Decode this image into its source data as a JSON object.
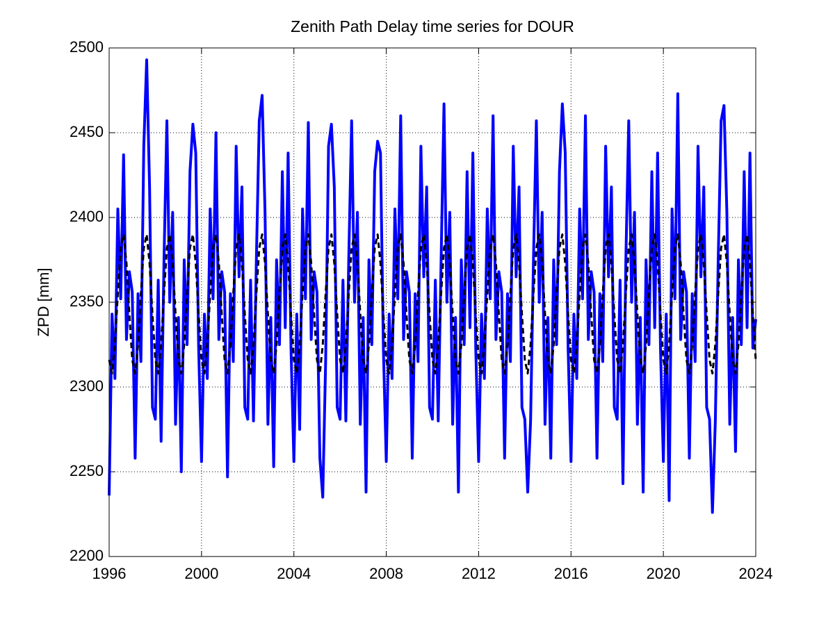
{
  "chart_data": {
    "type": "line",
    "title": "Zenith Path Delay time series for DOUR",
    "y_label": "ZPD [mm]",
    "xlim": [
      1996,
      2024
    ],
    "xticks": [
      1996,
      2000,
      2004,
      2008,
      2012,
      2016,
      2020,
      2024
    ],
    "ylim": [
      2200,
      2500
    ],
    "yticks": [
      2200,
      2250,
      2300,
      2350,
      2400,
      2450,
      2500
    ],
    "grid": true,
    "x": [
      1996,
      1996.125,
      1996.25,
      1996.375,
      1996.5,
      1996.625,
      1996.75,
      1996.875,
      1997,
      1997.125,
      1997.25,
      1997.375,
      1997.5,
      1997.625,
      1997.75,
      1997.875,
      1998,
      1998.125,
      1998.25,
      1998.375,
      1998.5,
      1998.625,
      1998.75,
      1998.875,
      1999,
      1999.125,
      1999.25,
      1999.375,
      1999.5,
      1999.625,
      1999.75,
      1999.875,
      2000,
      2000.125,
      2000.25,
      2000.375,
      2000.5,
      2000.625,
      2000.75,
      2000.875,
      2001,
      2001.125,
      2001.25,
      2001.375,
      2001.5,
      2001.625,
      2001.75,
      2001.875,
      2002,
      2002.125,
      2002.25,
      2002.375,
      2002.5,
      2002.625,
      2002.75,
      2002.875,
      2003,
      2003.125,
      2003.25,
      2003.375,
      2003.5,
      2003.625,
      2003.75,
      2003.875,
      2004,
      2004.125,
      2004.25,
      2004.375,
      2004.5,
      2004.625,
      2004.75,
      2004.875,
      2005,
      2005.125,
      2005.25,
      2005.375,
      2005.5,
      2005.625,
      2005.75,
      2005.875,
      2006,
      2006.125,
      2006.25,
      2006.375,
      2006.5,
      2006.625,
      2006.75,
      2006.875,
      2007,
      2007.125,
      2007.25,
      2007.375,
      2007.5,
      2007.625,
      2007.75,
      2007.875,
      2008,
      2008.125,
      2008.25,
      2008.375,
      2008.5,
      2008.625,
      2008.75,
      2008.875,
      2009,
      2009.125,
      2009.25,
      2009.375,
      2009.5,
      2009.625,
      2009.75,
      2009.875,
      2010,
      2010.125,
      2010.25,
      2010.375,
      2010.5,
      2010.625,
      2010.75,
      2010.875,
      2011,
      2011.125,
      2011.25,
      2011.375,
      2011.5,
      2011.625,
      2011.75,
      2011.875,
      2012,
      2012.125,
      2012.25,
      2012.375,
      2012.5,
      2012.625,
      2012.75,
      2012.875,
      2013,
      2013.125,
      2013.25,
      2013.375,
      2013.5,
      2013.625,
      2013.75,
      2013.875,
      2014,
      2014.125,
      2014.25,
      2014.375,
      2014.5,
      2014.625,
      2014.75,
      2014.875,
      2015,
      2015.125,
      2015.25,
      2015.375,
      2015.5,
      2015.625,
      2015.75,
      2015.875,
      2016,
      2016.125,
      2016.25,
      2016.375,
      2016.5,
      2016.625,
      2016.75,
      2016.875,
      2017,
      2017.125,
      2017.25,
      2017.375,
      2017.5,
      2017.625,
      2017.75,
      2017.875,
      2018,
      2018.125,
      2018.25,
      2018.375,
      2018.5,
      2018.625,
      2018.75,
      2018.875,
      2019,
      2019.125,
      2019.25,
      2019.375,
      2019.5,
      2019.625,
      2019.75,
      2019.875,
      2020,
      2020.125,
      2020.25,
      2020.375,
      2020.5,
      2020.625,
      2020.75,
      2020.875,
      2021,
      2021.125,
      2021.25,
      2021.375,
      2021.5,
      2021.625,
      2021.75,
      2021.875,
      2022,
      2022.125,
      2022.25,
      2022.375,
      2022.5,
      2022.625,
      2022.75,
      2022.875,
      2023,
      2023.125,
      2023.25,
      2023.375,
      2023.5,
      2023.625,
      2023.75,
      2023.875,
      2024
    ],
    "series": [
      {
        "color": "#0000ff",
        "width": 4,
        "dash": false,
        "values": [
          2236,
          2343,
          2305,
          2405,
          2352,
          2437,
          2328,
          2368,
          2356,
          2258,
          2355,
          2315,
          2442,
          2493,
          2418,
          2288,
          2281,
          2363,
          2268,
          2375,
          2457,
          2350,
          2403,
          2278,
          2341,
          2250,
          2375,
          2325,
          2427,
          2455,
          2438,
          2323,
          2256,
          2343,
          2305,
          2405,
          2352,
          2450,
          2328,
          2368,
          2356,
          2247,
          2355,
          2315,
          2442,
          2365,
          2418,
          2288,
          2281,
          2363,
          2280,
          2375,
          2457,
          2472,
          2403,
          2278,
          2341,
          2253,
          2375,
          2325,
          2427,
          2335,
          2438,
          2323,
          2256,
          2343,
          2275,
          2405,
          2352,
          2456,
          2328,
          2368,
          2356,
          2258,
          2235,
          2315,
          2442,
          2455,
          2418,
          2288,
          2281,
          2363,
          2280,
          2375,
          2457,
          2350,
          2403,
          2278,
          2341,
          2238,
          2375,
          2325,
          2427,
          2445,
          2438,
          2323,
          2256,
          2343,
          2305,
          2405,
          2352,
          2460,
          2328,
          2368,
          2356,
          2258,
          2355,
          2315,
          2442,
          2365,
          2418,
          2288,
          2281,
          2363,
          2280,
          2375,
          2467,
          2350,
          2403,
          2278,
          2341,
          2238,
          2375,
          2325,
          2427,
          2335,
          2438,
          2323,
          2256,
          2343,
          2305,
          2405,
          2352,
          2460,
          2328,
          2368,
          2356,
          2258,
          2355,
          2315,
          2442,
          2365,
          2418,
          2288,
          2281,
          2238,
          2280,
          2375,
          2457,
          2350,
          2403,
          2278,
          2341,
          2258,
          2375,
          2325,
          2427,
          2467,
          2438,
          2323,
          2256,
          2343,
          2305,
          2405,
          2352,
          2460,
          2328,
          2368,
          2356,
          2258,
          2355,
          2315,
          2442,
          2365,
          2418,
          2288,
          2281,
          2363,
          2243,
          2375,
          2457,
          2350,
          2403,
          2278,
          2341,
          2238,
          2375,
          2325,
          2427,
          2335,
          2438,
          2323,
          2256,
          2343,
          2233,
          2405,
          2352,
          2473,
          2328,
          2368,
          2356,
          2258,
          2355,
          2315,
          2442,
          2365,
          2418,
          2288,
          2281,
          2226,
          2280,
          2375,
          2457,
          2466,
          2403,
          2278,
          2341,
          2262,
          2375,
          2325,
          2427,
          2335,
          2438,
          2323,
          2340
        ]
      },
      {
        "color": "#000000",
        "width": 3,
        "dash": true,
        "values": [
          2316,
          2308,
          2325,
          2355,
          2382,
          2390,
          2373,
          2343,
          2316,
          2308,
          2325,
          2355,
          2382,
          2390,
          2373,
          2343,
          2316,
          2308,
          2325,
          2355,
          2382,
          2390,
          2373,
          2343,
          2316,
          2308,
          2325,
          2355,
          2382,
          2390,
          2373,
          2343,
          2316,
          2308,
          2325,
          2355,
          2382,
          2390,
          2373,
          2343,
          2316,
          2308,
          2325,
          2355,
          2382,
          2390,
          2373,
          2343,
          2316,
          2308,
          2325,
          2355,
          2382,
          2390,
          2373,
          2343,
          2316,
          2308,
          2325,
          2355,
          2382,
          2390,
          2373,
          2343,
          2316,
          2308,
          2325,
          2355,
          2382,
          2390,
          2373,
          2343,
          2316,
          2308,
          2325,
          2355,
          2382,
          2390,
          2373,
          2343,
          2316,
          2308,
          2325,
          2355,
          2382,
          2390,
          2373,
          2343,
          2316,
          2308,
          2325,
          2355,
          2382,
          2390,
          2373,
          2343,
          2316,
          2308,
          2325,
          2355,
          2382,
          2390,
          2373,
          2343,
          2316,
          2308,
          2325,
          2355,
          2382,
          2390,
          2373,
          2343,
          2316,
          2308,
          2325,
          2355,
          2382,
          2390,
          2373,
          2343,
          2316,
          2308,
          2325,
          2355,
          2382,
          2390,
          2373,
          2343,
          2316,
          2308,
          2325,
          2355,
          2382,
          2390,
          2373,
          2343,
          2316,
          2308,
          2325,
          2355,
          2382,
          2390,
          2373,
          2343,
          2316,
          2308,
          2325,
          2355,
          2382,
          2390,
          2373,
          2343,
          2316,
          2308,
          2325,
          2355,
          2382,
          2390,
          2373,
          2343,
          2316,
          2308,
          2325,
          2355,
          2382,
          2390,
          2373,
          2343,
          2316,
          2308,
          2325,
          2355,
          2382,
          2390,
          2373,
          2343,
          2316,
          2308,
          2325,
          2355,
          2382,
          2390,
          2373,
          2343,
          2316,
          2308,
          2325,
          2355,
          2382,
          2390,
          2373,
          2343,
          2316,
          2308,
          2325,
          2355,
          2382,
          2390,
          2373,
          2343,
          2316,
          2308,
          2325,
          2355,
          2382,
          2390,
          2373,
          2343,
          2316,
          2308,
          2325,
          2355,
          2382,
          2390,
          2373,
          2343,
          2316,
          2308,
          2325,
          2355,
          2382,
          2390,
          2373,
          2343,
          2316
        ]
      }
    ]
  }
}
